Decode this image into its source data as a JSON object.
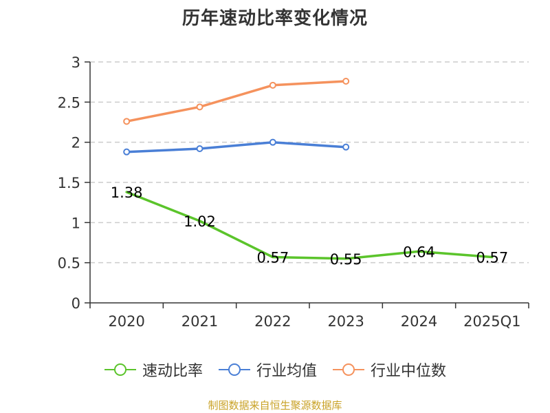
{
  "title": "历年速动比率变化情况",
  "source": "制图数据来自恒生聚源数据库",
  "colors": {
    "grid": "#cccccc",
    "axis": "#333333",
    "text": "#333333",
    "source": "#c9a227"
  },
  "chart_data": {
    "type": "line",
    "title": "历年速动比率变化情况",
    "categories": [
      "2020",
      "2021",
      "2022",
      "2023",
      "2024",
      "2025Q1"
    ],
    "ylim": [
      0,
      3
    ],
    "yticks": [
      "0",
      "0.5",
      "1",
      "1.5",
      "2",
      "2.5",
      "3"
    ],
    "grid": true,
    "legend_position": "bottom",
    "series": [
      {
        "name": "速动比率",
        "color": "#5bc42b",
        "values": [
          1.38,
          1.02,
          0.57,
          0.55,
          0.64,
          0.57
        ],
        "labels": [
          "1.38",
          "1.02",
          "0.57",
          "0.55",
          "0.64",
          "0.57"
        ],
        "show_markers": false,
        "show_labels": true
      },
      {
        "name": "行业均值",
        "color": "#4a7fd6",
        "values": [
          1.88,
          1.92,
          2.0,
          1.94,
          null,
          null
        ],
        "show_markers": true,
        "show_labels": false
      },
      {
        "name": "行业中位数",
        "color": "#f5925d",
        "values": [
          2.26,
          2.44,
          2.71,
          2.76,
          null,
          null
        ],
        "show_markers": true,
        "show_labels": false
      }
    ]
  }
}
